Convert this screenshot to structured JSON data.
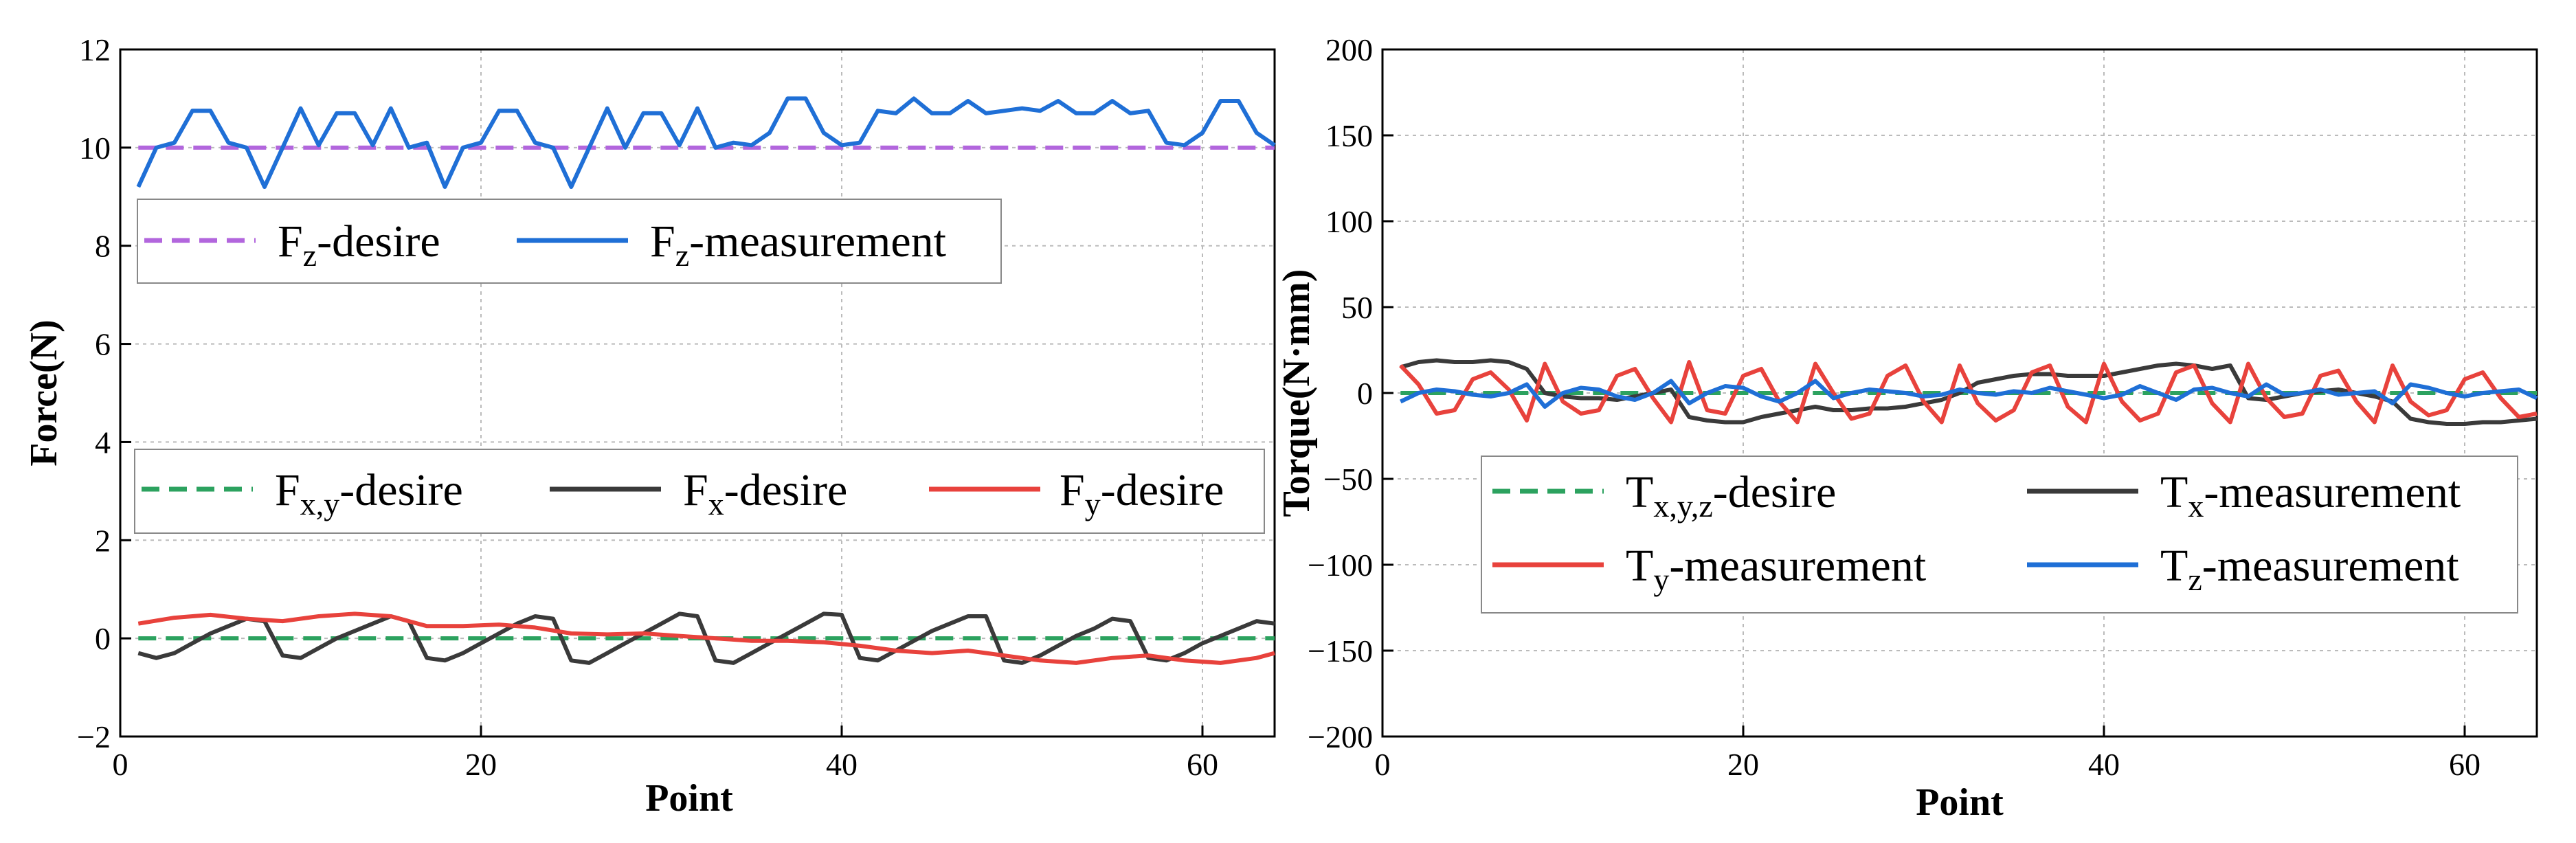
{
  "chart_data": [
    {
      "type": "line",
      "xlabel": "Point",
      "ylabel": "Force(N)",
      "xlim": [
        0,
        64
      ],
      "ylim": [
        -2,
        12
      ],
      "xticks": [
        0,
        20,
        40,
        60
      ],
      "yticks": [
        -2,
        0,
        2,
        4,
        6,
        8,
        10,
        12
      ],
      "grid": true,
      "legends": [
        {
          "position": "upper-left",
          "entries": [
            {
              "ref": "fz_desire",
              "text": "F",
              "sub": "z",
              "suffix": "-desire"
            },
            {
              "ref": "fz_meas",
              "text": "F",
              "sub": "z",
              "suffix": "-measurement"
            }
          ]
        },
        {
          "position": "lower-center",
          "entries": [
            {
              "ref": "fxy_desire",
              "text": "F",
              "sub": "x,y",
              "suffix": "-desire"
            },
            {
              "ref": "fx",
              "text": "F",
              "sub": "x",
              "suffix": "-desire"
            },
            {
              "ref": "fy",
              "text": "F",
              "sub": "y",
              "suffix": "-desire"
            }
          ]
        }
      ],
      "series": [
        {
          "id": "fz_desire",
          "color": "#b266dd",
          "dash": true,
          "x": [
            1,
            64
          ],
          "values": [
            10,
            10
          ]
        },
        {
          "id": "fz_meas",
          "color": "#1f6fd6",
          "dash": false,
          "x": [
            1,
            2,
            3,
            4,
            5,
            6,
            7,
            8,
            9,
            10,
            11,
            12,
            13,
            14,
            15,
            16,
            17,
            18,
            19,
            20,
            21,
            22,
            23,
            24,
            25,
            26,
            27,
            28,
            29,
            30,
            31,
            32,
            33,
            34,
            35,
            36,
            37,
            38,
            39,
            40,
            41,
            42,
            43,
            44,
            45,
            46,
            47,
            48,
            49,
            50,
            51,
            52,
            53,
            54,
            55,
            56,
            57,
            58,
            59,
            60,
            61,
            62,
            63,
            64
          ],
          "values": [
            9.2,
            10.0,
            10.1,
            10.75,
            10.75,
            10.1,
            10.0,
            9.2,
            10.0,
            10.8,
            10.05,
            10.7,
            10.7,
            10.05,
            10.8,
            10.0,
            10.1,
            9.2,
            10.0,
            10.1,
            10.75,
            10.75,
            10.1,
            10.0,
            9.2,
            10.0,
            10.8,
            10.0,
            10.7,
            10.7,
            10.05,
            10.8,
            10.0,
            10.1,
            10.05,
            10.3,
            11.0,
            11.0,
            10.3,
            10.05,
            10.1,
            10.75,
            10.7,
            11.0,
            10.7,
            10.7,
            10.95,
            10.7,
            10.75,
            10.8,
            10.75,
            10.95,
            10.7,
            10.7,
            10.95,
            10.7,
            10.75,
            10.1,
            10.05,
            10.3,
            10.95,
            10.95,
            10.3,
            10.05
          ]
        },
        {
          "id": "fxy_desire",
          "color": "#2ca25f",
          "dash": true,
          "x": [
            1,
            64
          ],
          "values": [
            0,
            0
          ]
        },
        {
          "id": "fx",
          "color": "#3a3a3a",
          "dash": false,
          "x": [
            1,
            2,
            3,
            4,
            5,
            6,
            7,
            8,
            9,
            10,
            11,
            12,
            13,
            14,
            15,
            16,
            17,
            18,
            19,
            20,
            21,
            22,
            23,
            24,
            25,
            26,
            27,
            28,
            29,
            30,
            31,
            32,
            33,
            34,
            35,
            36,
            37,
            38,
            39,
            40,
            41,
            42,
            43,
            44,
            45,
            46,
            47,
            48,
            49,
            50,
            51,
            52,
            53,
            54,
            55,
            56,
            57,
            58,
            59,
            60,
            61,
            62,
            63,
            64
          ],
          "values": [
            -0.3,
            -0.4,
            -0.3,
            -0.1,
            0.1,
            0.25,
            0.4,
            0.35,
            -0.35,
            -0.4,
            -0.2,
            0.0,
            0.15,
            0.3,
            0.45,
            0.35,
            -0.4,
            -0.45,
            -0.3,
            -0.1,
            0.1,
            0.3,
            0.45,
            0.4,
            -0.45,
            -0.5,
            -0.3,
            -0.1,
            0.1,
            0.3,
            0.5,
            0.45,
            -0.45,
            -0.5,
            -0.3,
            -0.1,
            0.1,
            0.3,
            0.5,
            0.48,
            -0.4,
            -0.45,
            -0.25,
            -0.05,
            0.15,
            0.3,
            0.45,
            0.45,
            -0.45,
            -0.5,
            -0.35,
            -0.15,
            0.05,
            0.2,
            0.4,
            0.35,
            -0.4,
            -0.45,
            -0.3,
            -0.1,
            0.05,
            0.2,
            0.35,
            0.3
          ]
        },
        {
          "id": "fy",
          "color": "#e8423c",
          "dash": false,
          "x": [
            1,
            3,
            5,
            7,
            9,
            11,
            13,
            15,
            17,
            19,
            21,
            23,
            25,
            27,
            29,
            31,
            33,
            35,
            37,
            39,
            41,
            43,
            45,
            47,
            49,
            51,
            53,
            55,
            57,
            59,
            61,
            63,
            64
          ],
          "values": [
            0.3,
            0.42,
            0.48,
            0.4,
            0.35,
            0.45,
            0.5,
            0.45,
            0.25,
            0.25,
            0.28,
            0.22,
            0.1,
            0.08,
            0.1,
            0.05,
            0.0,
            -0.05,
            -0.05,
            -0.08,
            -0.15,
            -0.25,
            -0.3,
            -0.25,
            -0.35,
            -0.45,
            -0.5,
            -0.4,
            -0.35,
            -0.45,
            -0.5,
            -0.4,
            -0.3
          ]
        }
      ]
    },
    {
      "type": "line",
      "xlabel": "Point",
      "ylabel": "Torque(N·mm)",
      "xlim": [
        0,
        64
      ],
      "ylim": [
        -200,
        200
      ],
      "xticks": [
        0,
        20,
        40,
        60
      ],
      "yticks": [
        -200,
        -150,
        -100,
        -50,
        0,
        50,
        100,
        150,
        200
      ],
      "grid": true,
      "legends": [
        {
          "position": "lower-center",
          "entries": [
            {
              "ref": "txyz_desire",
              "text": "T",
              "sub": "x,y,z",
              "suffix": "-desire"
            },
            {
              "ref": "tx",
              "text": "T",
              "sub": "x",
              "suffix": "-measurement"
            },
            {
              "ref": "ty",
              "text": "T",
              "sub": "y",
              "suffix": "-measurement"
            },
            {
              "ref": "tz",
              "text": "T",
              "sub": "z",
              "suffix": "-measurement"
            }
          ]
        }
      ],
      "series": [
        {
          "id": "txyz_desire",
          "color": "#2ca25f",
          "dash": true,
          "x": [
            1,
            64
          ],
          "values": [
            0,
            0
          ]
        },
        {
          "id": "tx",
          "color": "#3a3a3a",
          "dash": false,
          "x": [
            1,
            2,
            3,
            4,
            5,
            6,
            7,
            8,
            9,
            10,
            11,
            12,
            13,
            14,
            15,
            16,
            17,
            18,
            19,
            20,
            21,
            22,
            23,
            24,
            25,
            26,
            27,
            28,
            29,
            30,
            31,
            32,
            33,
            34,
            35,
            36,
            37,
            38,
            39,
            40,
            41,
            42,
            43,
            44,
            45,
            46,
            47,
            48,
            49,
            50,
            51,
            52,
            53,
            54,
            55,
            56,
            57,
            58,
            59,
            60,
            61,
            62,
            63,
            64
          ],
          "values": [
            15,
            18,
            19,
            18,
            18,
            19,
            18,
            14,
            0,
            -2,
            -3,
            -3,
            -4,
            -2,
            0,
            2,
            -14,
            -16,
            -17,
            -17,
            -14,
            -12,
            -10,
            -8,
            -10,
            -10,
            -9,
            -9,
            -8,
            -6,
            -4,
            0,
            6,
            8,
            10,
            11,
            11,
            10,
            10,
            10,
            12,
            14,
            16,
            17,
            16,
            14,
            16,
            -3,
            -4,
            -2,
            0,
            1,
            2,
            0,
            -2,
            -5,
            -15,
            -17,
            -18,
            -18,
            -17,
            -17,
            -16,
            -15
          ]
        },
        {
          "id": "ty",
          "color": "#e8423c",
          "dash": false,
          "x": [
            1,
            2,
            3,
            4,
            5,
            6,
            7,
            8,
            9,
            10,
            11,
            12,
            13,
            14,
            15,
            16,
            17,
            18,
            19,
            20,
            21,
            22,
            23,
            24,
            25,
            26,
            27,
            28,
            29,
            30,
            31,
            32,
            33,
            34,
            35,
            36,
            37,
            38,
            39,
            40,
            41,
            42,
            43,
            44,
            45,
            46,
            47,
            48,
            49,
            50,
            51,
            52,
            53,
            54,
            55,
            56,
            57,
            58,
            59,
            60,
            61,
            62,
            63,
            64
          ],
          "values": [
            16,
            5,
            -12,
            -10,
            8,
            12,
            2,
            -16,
            17,
            -5,
            -12,
            -10,
            10,
            14,
            -3,
            -17,
            18,
            -10,
            -12,
            10,
            14,
            -5,
            -17,
            17,
            0,
            -15,
            -12,
            10,
            16,
            -5,
            -17,
            16,
            -6,
            -16,
            -10,
            12,
            16,
            -8,
            -17,
            17,
            -5,
            -16,
            -12,
            12,
            16,
            -6,
            -17,
            17,
            -3,
            -14,
            -12,
            10,
            13,
            -5,
            -17,
            16,
            -5,
            -13,
            -10,
            8,
            12,
            -3,
            -14,
            -12
          ]
        },
        {
          "id": "tz",
          "color": "#1f6fd6",
          "dash": false,
          "x": [
            1,
            2,
            3,
            4,
            5,
            6,
            7,
            8,
            9,
            10,
            11,
            12,
            13,
            14,
            15,
            16,
            17,
            18,
            19,
            20,
            21,
            22,
            23,
            24,
            25,
            26,
            27,
            28,
            29,
            30,
            31,
            32,
            33,
            34,
            35,
            36,
            37,
            38,
            39,
            40,
            41,
            42,
            43,
            44,
            45,
            46,
            47,
            48,
            49,
            50,
            51,
            52,
            53,
            54,
            55,
            56,
            57,
            58,
            59,
            60,
            61,
            62,
            63,
            64
          ],
          "values": [
            -5,
            0,
            2,
            1,
            -1,
            -2,
            0,
            5,
            -8,
            0,
            3,
            2,
            -2,
            -4,
            0,
            7,
            -6,
            0,
            4,
            3,
            -2,
            -5,
            0,
            7,
            -3,
            0,
            2,
            1,
            0,
            -2,
            -1,
            2,
            0,
            -1,
            1,
            0,
            3,
            1,
            -1,
            -3,
            -1,
            4,
            0,
            -4,
            2,
            3,
            0,
            -2,
            5,
            -1,
            0,
            2,
            -1,
            0,
            1,
            -6,
            5,
            3,
            0,
            -2,
            0,
            1,
            2,
            -3
          ]
        }
      ]
    }
  ]
}
